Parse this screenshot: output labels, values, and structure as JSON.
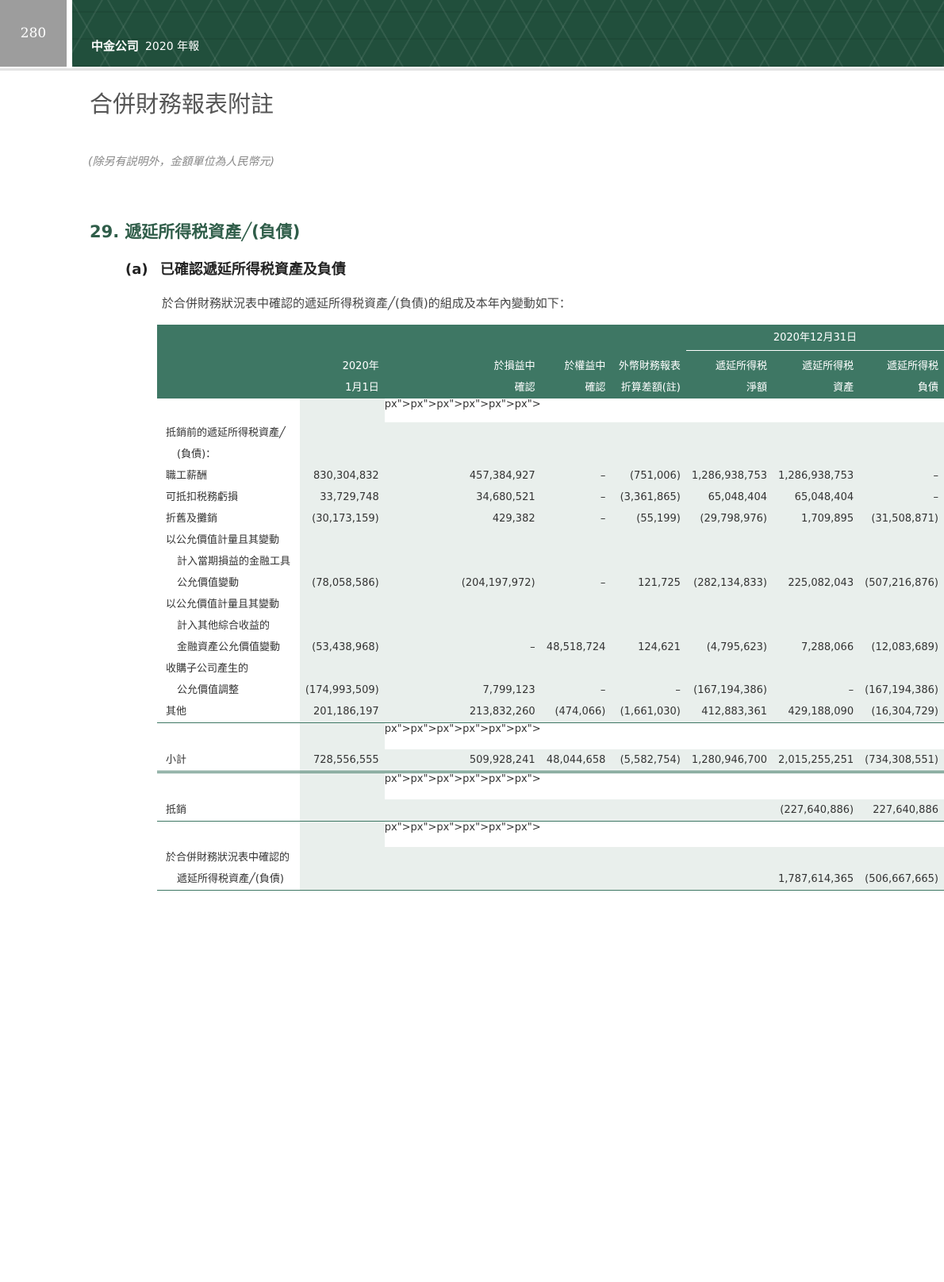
{
  "header": {
    "page_number": "280",
    "company": "中金公司",
    "report": "2020 年報"
  },
  "title": "合併財務報表附註",
  "unit_note": "(除另有説明外，金額單位為人民幣元)",
  "section": {
    "number": "29.",
    "title": "遞延所得税資產╱(負債)"
  },
  "subsection": {
    "label": "(a)",
    "title": "已確認遞延所得税資產及負債"
  },
  "intro": "於合併財務狀況表中確認的遞延所得税資產╱(負債)的組成及本年內變動如下：",
  "colors": {
    "header_green": "#3e7764",
    "banner_green": "#214f3c",
    "shade": "#e9efec"
  },
  "table": {
    "group_header": "2020年12月31日",
    "columns": [
      [
        "2020年",
        "1月1日"
      ],
      [
        "於損益中",
        "確認"
      ],
      [
        "於權益中",
        "確認"
      ],
      [
        "外幣財務報表",
        "折算差額(註)"
      ],
      [
        "遞延所得税",
        "淨額"
      ],
      [
        "遞延所得税",
        "資產"
      ],
      [
        "遞延所得税",
        "負債"
      ]
    ],
    "rows": [
      {
        "label": [
          "抵銷前的遞延所得税資產╱",
          "(負債)："
        ],
        "values": [
          "",
          "",
          "",
          "",
          "",
          "",
          ""
        ]
      },
      {
        "label": [
          "職工薪酬"
        ],
        "values": [
          "830,304,832",
          "457,384,927",
          "–",
          "(751,006)",
          "1,286,938,753",
          "1,286,938,753",
          "–"
        ]
      },
      {
        "label": [
          "可抵扣税務虧損"
        ],
        "values": [
          "33,729,748",
          "34,680,521",
          "–",
          "(3,361,865)",
          "65,048,404",
          "65,048,404",
          "–"
        ]
      },
      {
        "label": [
          "折舊及攤銷"
        ],
        "values": [
          "(30,173,159)",
          "429,382",
          "–",
          "(55,199)",
          "(29,798,976)",
          "1,709,895",
          "(31,508,871)"
        ]
      },
      {
        "label": [
          "以公允價值計量且其變動",
          "計入當期損益的金融工具",
          "公允價值變動"
        ],
        "values": [
          "(78,058,586)",
          "(204,197,972)",
          "–",
          "121,725",
          "(282,134,833)",
          "225,082,043",
          "(507,216,876)"
        ]
      },
      {
        "label": [
          "以公允價值計量且其變動",
          "計入其他綜合收益的",
          "金融資產公允價值變動"
        ],
        "values": [
          "(53,438,968)",
          "–",
          "48,518,724",
          "124,621",
          "(4,795,623)",
          "7,288,066",
          "(12,083,689)"
        ]
      },
      {
        "label": [
          "收購子公司產生的",
          "公允價值調整"
        ],
        "values": [
          "(174,993,509)",
          "7,799,123",
          "–",
          "–",
          "(167,194,386)",
          "–",
          "(167,194,386)"
        ]
      },
      {
        "label": [
          "其他"
        ],
        "values": [
          "201,186,197",
          "213,832,260",
          "(474,066)",
          "(1,661,030)",
          "412,883,361",
          "429,188,090",
          "(16,304,729)"
        ]
      }
    ],
    "subtotal": {
      "label": "小計",
      "values": [
        "728,556,555",
        "509,928,241",
        "48,044,658",
        "(5,582,754)",
        "1,280,946,700",
        "2,015,255,251",
        "(734,308,551)"
      ]
    },
    "offset": {
      "label": "抵銷",
      "values": [
        "",
        "",
        "",
        "",
        "",
        "(227,640,886)",
        "227,640,886"
      ]
    },
    "recognised": {
      "label": [
        "於合併財務狀況表中確認的",
        "遞延所得税資產╱(負債)"
      ],
      "values": [
        "",
        "",
        "",
        "",
        "",
        "1,787,614,365",
        "(506,667,665)"
      ]
    }
  }
}
